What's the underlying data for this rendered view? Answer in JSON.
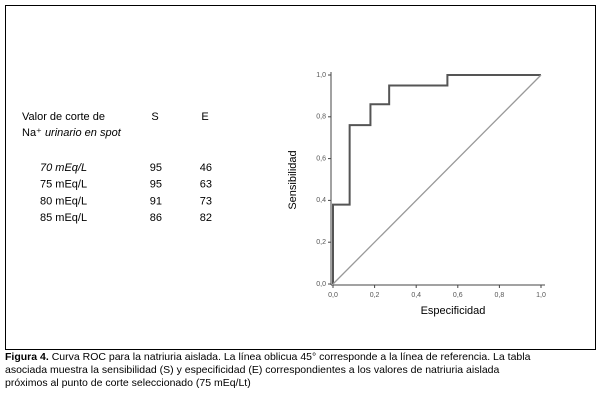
{
  "table": {
    "header": [
      "Valor de corte de",
      "S",
      "E"
    ],
    "subheader": [
      "Na⁺",
      "urinario en spot"
    ],
    "rows": [
      [
        "70 mEq/L",
        95,
        46
      ],
      [
        "75 mEq/L",
        95,
        63
      ],
      [
        "80 mEq/L",
        91,
        73
      ],
      [
        "85 mEq/L",
        86,
        82
      ]
    ]
  },
  "chart_data": {
    "type": "line",
    "xlabel": "Especificidad",
    "ylabel": "Sensibilidad",
    "series": [
      {
        "color": "#555555",
        "x": [
          0,
          0,
          0.08,
          0.08,
          0.18,
          0.18,
          0.27,
          0.27,
          0.55,
          0.55,
          1.0
        ],
        "values": [
          0,
          0.38,
          0.38,
          0.76,
          0.76,
          0.86,
          0.86,
          0.95,
          0.95,
          1.0,
          1.0
        ]
      },
      {
        "color": "#999999",
        "x": [
          0,
          1.0
        ],
        "values": [
          0,
          1.0
        ]
      }
    ],
    "xlim": [
      0,
      1.0
    ],
    "ylim": [
      0,
      1.0
    ],
    "xticks": [
      {
        "value": 0,
        "label": "0,0"
      },
      {
        "value": 0.2,
        "label": "0,2"
      },
      {
        "value": 0.4,
        "label": "0,4"
      },
      {
        "value": 0.6,
        "label": "0,6"
      },
      {
        "value": 0.8,
        "label": "0,8"
      },
      {
        "value": 1.0,
        "label": "1,0"
      }
    ],
    "yticks": [
      {
        "value": 0,
        "label": "0,0"
      },
      {
        "value": 0.2,
        "label": "0,2"
      },
      {
        "value": 0.4,
        "label": "0,4"
      },
      {
        "value": 0.6,
        "label": "0,6"
      },
      {
        "value": 0.8,
        "label": "0,8"
      },
      {
        "value": 1.0,
        "label": "1,0"
      }
    ]
  },
  "caption": {
    "label": "Figura 4.",
    "lines": [
      "Curva ROC para la natriuria aislada. La línea oblicua 45° corresponde a la línea de referencia.  La tabla",
      "asociada muestra la sensibilidad (S) y especificidad (E) correspondientes a los valores de natriuria aislada",
      "próximos al punto de corte seleccionado (75 mEq/Lt)"
    ]
  }
}
